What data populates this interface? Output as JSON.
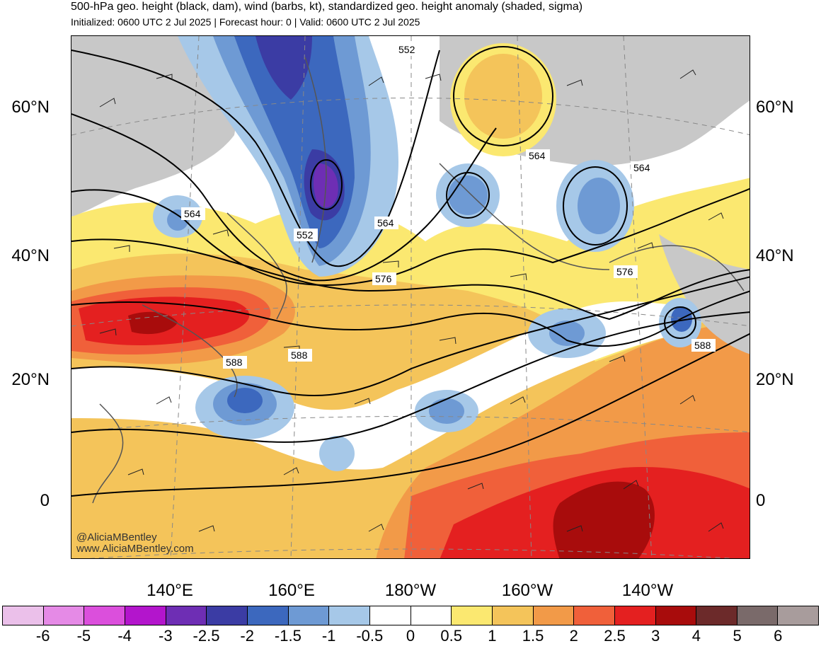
{
  "header": {
    "title": "500-hPa geo. height (black, dam), wind (barbs, kt), standardized geo. height anomaly (shaded, sigma)",
    "subtitle": "Initialized: 0600 UTC 2 Jul 2025 | Forecast hour: 0 | Valid: 0600 UTC 2 Jul 2025"
  },
  "map": {
    "lat_labels": [
      "60°N",
      "40°N",
      "20°N",
      "0"
    ],
    "lon_labels": [
      "140°E",
      "160°E",
      "180°W",
      "160°W",
      "140°W"
    ],
    "contour_labels": [
      "552",
      "552",
      "564",
      "564",
      "564",
      "564",
      "576",
      "576",
      "588",
      "588",
      "588"
    ],
    "land_color": "#c8c8c8",
    "coast_color": "#555555"
  },
  "colorbar": {
    "colors": [
      "#ebc0ea",
      "#e58ae6",
      "#db4fdc",
      "#b315cc",
      "#6e2eb4",
      "#3b3ca4",
      "#3c68be",
      "#6e9ad4",
      "#a6c8e8",
      "#ffffff",
      "#ffffff",
      "#fbe870",
      "#f4c45a",
      "#f29a48",
      "#f0603a",
      "#e42020",
      "#a80c0c",
      "#6c2a2a",
      "#7a6a6a",
      "#a89c9c"
    ],
    "labels": [
      "-6",
      "-5",
      "-4",
      "-3",
      "-2.5",
      "-2",
      "-1.5",
      "-1",
      "-0.5",
      "0",
      "0.5",
      "1",
      "1.5",
      "2",
      "2.5",
      "3",
      "4",
      "5",
      "6"
    ]
  },
  "watermark": {
    "handle": "@AliciaMBentley",
    "url": "www.AliciaMBentley.com"
  }
}
